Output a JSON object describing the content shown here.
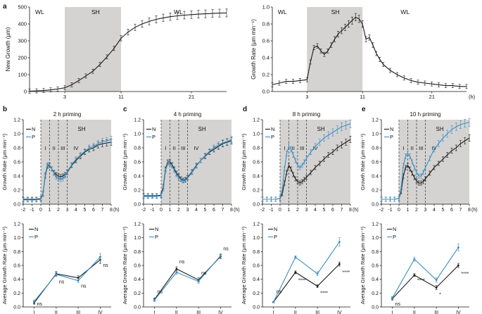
{
  "colors": {
    "black": "#1a1a1a",
    "blue": "#3a8fc6",
    "shade": "#d5d3d1"
  },
  "panel_letters": {
    "a": "a",
    "b": "b",
    "c": "c",
    "d": "d",
    "e": "e"
  },
  "chart_data": [
    {
      "id": "a1",
      "type": "line",
      "xlabel": "",
      "ylabel": "New Growth (μm)",
      "xlim": [
        -2,
        26
      ],
      "ylim": [
        0,
        500
      ],
      "xticks": [
        3,
        11,
        21
      ],
      "yticks": [
        0,
        100,
        200,
        300,
        400,
        500
      ],
      "x_unit_label": "",
      "shade": [
        3,
        11
      ],
      "region_labels": [
        {
          "text": "WL",
          "x": -1.2
        },
        {
          "text": "SH",
          "x": 6.8
        },
        {
          "text": "WL",
          "x": 18.5
        }
      ],
      "x": [
        -2,
        -1,
        0,
        1,
        2,
        3,
        4,
        5,
        6,
        7,
        8,
        9,
        10,
        11,
        12,
        13,
        14,
        15,
        16,
        17,
        18,
        19,
        20,
        21,
        22,
        23,
        24,
        25,
        26
      ],
      "series": [
        {
          "name": "growth",
          "color": "black",
          "values": [
            2,
            4,
            6,
            10,
            15,
            22,
            40,
            65,
            92,
            120,
            160,
            205,
            255,
            315,
            352,
            380,
            400,
            415,
            427,
            436,
            443,
            448,
            452,
            455,
            458,
            460,
            462,
            464,
            465
          ]
        }
      ]
    },
    {
      "id": "a2",
      "type": "line",
      "xlabel": "",
      "ylabel": "Growth Rate (μm min⁻¹)",
      "xlim": [
        -2,
        26
      ],
      "ylim": [
        0,
        1.0
      ],
      "xticks": [
        3,
        11,
        21
      ],
      "yticks": [
        0,
        0.2,
        0.4,
        0.6,
        0.8,
        1.0
      ],
      "x_unit_label": "(h)",
      "shade": [
        3,
        11
      ],
      "region_labels": [
        {
          "text": "WL",
          "x": -1.2
        },
        {
          "text": "SH",
          "x": 6.5
        },
        {
          "text": "WL",
          "x": 16.5
        }
      ],
      "x": [
        -2,
        -1,
        0,
        1,
        2,
        3,
        3.5,
        4,
        4.5,
        5,
        5.5,
        6,
        6.5,
        7,
        7.5,
        8,
        8.5,
        9,
        9.5,
        10,
        10.5,
        11,
        11.5,
        12,
        12.5,
        13,
        13.5,
        14,
        15,
        16,
        17,
        18,
        19,
        20,
        21,
        22,
        23,
        24,
        25,
        26
      ],
      "series": [
        {
          "name": "rate",
          "color": "black",
          "values": [
            0.08,
            0.1,
            0.12,
            0.12,
            0.13,
            0.14,
            0.35,
            0.52,
            0.54,
            0.48,
            0.44,
            0.48,
            0.55,
            0.62,
            0.68,
            0.72,
            0.76,
            0.8,
            0.84,
            0.88,
            0.86,
            0.8,
            0.62,
            0.64,
            0.55,
            0.45,
            0.38,
            0.32,
            0.25,
            0.2,
            0.16,
            0.13,
            0.11,
            0.1,
            0.09,
            0.08,
            0.07,
            0.07,
            0.06,
            0.06
          ]
        }
      ]
    },
    {
      "id": "b1",
      "type": "line",
      "title": "2 h priming",
      "ylabel": "Growth Rate (μm min⁻¹)",
      "xlim": [
        -2,
        8
      ],
      "ylim": [
        0,
        1.2
      ],
      "xticks": [
        -2,
        -1,
        0,
        1,
        2,
        3,
        4,
        5,
        6,
        7,
        8
      ],
      "yticks": [
        0,
        0.2,
        0.4,
        0.6,
        0.8,
        1.0,
        1.2
      ],
      "x_unit_label": "(h)",
      "shade": [
        0,
        8
      ],
      "dashes": [
        0,
        1,
        2,
        3
      ],
      "legend": [
        "N",
        "P"
      ],
      "stage_labels": [
        "I",
        "II",
        "III",
        "IV"
      ],
      "sh_label": "SH",
      "x": [
        -2,
        -1.5,
        -1,
        -0.5,
        0,
        0.25,
        0.5,
        0.75,
        1,
        1.25,
        1.5,
        1.75,
        2,
        2.25,
        2.5,
        2.75,
        3,
        3.5,
        4,
        4.5,
        5,
        5.5,
        6,
        6.5,
        7,
        7.5,
        8
      ],
      "series": [
        {
          "name": "N",
          "color": "black",
          "values": [
            0.07,
            0.07,
            0.07,
            0.07,
            0.08,
            0.15,
            0.4,
            0.54,
            0.55,
            0.5,
            0.45,
            0.42,
            0.4,
            0.39,
            0.4,
            0.42,
            0.45,
            0.55,
            0.62,
            0.68,
            0.74,
            0.78,
            0.8,
            0.84,
            0.86,
            0.87,
            0.88
          ]
        },
        {
          "name": "P",
          "color": "blue",
          "values": [
            0.06,
            0.06,
            0.06,
            0.06,
            0.07,
            0.14,
            0.42,
            0.56,
            0.56,
            0.5,
            0.44,
            0.38,
            0.36,
            0.35,
            0.36,
            0.4,
            0.46,
            0.56,
            0.64,
            0.7,
            0.75,
            0.8,
            0.82,
            0.86,
            0.89,
            0.9,
            0.92
          ]
        }
      ]
    },
    {
      "id": "c1",
      "type": "line",
      "title": "4 h priming",
      "ylabel": "Growth Rate (μm min⁻¹)",
      "xlim": [
        -2,
        8
      ],
      "ylim": [
        0,
        1.2
      ],
      "xticks": [
        -2,
        -1,
        0,
        1,
        2,
        3,
        4,
        5,
        6,
        7,
        8
      ],
      "yticks": [
        0,
        0.2,
        0.4,
        0.6,
        0.8,
        1.0,
        1.2
      ],
      "x_unit_label": "(h)",
      "shade": [
        0,
        8
      ],
      "dashes": [
        0,
        1,
        2,
        3
      ],
      "legend": [
        "N",
        "P"
      ],
      "stage_labels": [
        "I",
        "II",
        "III",
        "IV"
      ],
      "sh_label": "SH",
      "x": [
        -2,
        -1.5,
        -1,
        -0.5,
        0,
        0.25,
        0.5,
        0.75,
        1,
        1.25,
        1.5,
        1.75,
        2,
        2.25,
        2.5,
        2.75,
        3,
        3.5,
        4,
        4.5,
        5,
        5.5,
        6,
        6.5,
        7,
        7.5,
        8
      ],
      "series": [
        {
          "name": "N",
          "color": "black",
          "values": [
            0.12,
            0.12,
            0.12,
            0.12,
            0.13,
            0.25,
            0.5,
            0.6,
            0.6,
            0.56,
            0.5,
            0.44,
            0.4,
            0.36,
            0.34,
            0.35,
            0.38,
            0.46,
            0.55,
            0.62,
            0.68,
            0.74,
            0.78,
            0.82,
            0.86,
            0.88,
            0.9
          ]
        },
        {
          "name": "P",
          "color": "blue",
          "values": [
            0.11,
            0.11,
            0.11,
            0.11,
            0.12,
            0.22,
            0.48,
            0.58,
            0.58,
            0.54,
            0.48,
            0.42,
            0.38,
            0.35,
            0.33,
            0.34,
            0.37,
            0.45,
            0.54,
            0.62,
            0.69,
            0.75,
            0.8,
            0.84,
            0.87,
            0.89,
            0.92
          ]
        }
      ]
    },
    {
      "id": "d1",
      "type": "line",
      "title": "8 h priming",
      "ylabel": "Growth Rate (μm min⁻¹)",
      "xlim": [
        -2,
        8
      ],
      "ylim": [
        0,
        1.2
      ],
      "xticks": [
        -2,
        -1,
        0,
        1,
        2,
        3,
        4,
        5,
        6,
        7,
        8
      ],
      "yticks": [
        0,
        0.2,
        0.4,
        0.6,
        0.8,
        1.0,
        1.2
      ],
      "x_unit_label": "(h)",
      "shade": [
        0,
        8
      ],
      "dashes": [
        0,
        1,
        2,
        3
      ],
      "legend": [
        "N",
        "P"
      ],
      "stage_labels": [
        "I",
        "II",
        "III",
        "IV"
      ],
      "sh_label": "SH",
      "x": [
        -2,
        -1.5,
        -1,
        -0.5,
        0,
        0.25,
        0.5,
        0.75,
        1,
        1.25,
        1.5,
        1.75,
        2,
        2.25,
        2.5,
        2.75,
        3,
        3.5,
        4,
        4.5,
        5,
        5.5,
        6,
        6.5,
        7,
        7.5,
        8
      ],
      "series": [
        {
          "name": "N",
          "color": "black",
          "values": [
            0.07,
            0.07,
            0.07,
            0.07,
            0.08,
            0.15,
            0.3,
            0.45,
            0.55,
            0.5,
            0.42,
            0.36,
            0.32,
            0.3,
            0.32,
            0.35,
            0.38,
            0.45,
            0.52,
            0.58,
            0.64,
            0.7,
            0.74,
            0.8,
            0.84,
            0.88,
            0.92
          ]
        },
        {
          "name": "P",
          "color": "blue",
          "values": [
            0.07,
            0.07,
            0.07,
            0.07,
            0.08,
            0.2,
            0.5,
            0.72,
            0.82,
            0.78,
            0.7,
            0.62,
            0.55,
            0.52,
            0.55,
            0.6,
            0.65,
            0.74,
            0.82,
            0.88,
            0.94,
            0.98,
            1.02,
            1.06,
            1.1,
            1.12,
            1.14
          ]
        }
      ]
    },
    {
      "id": "e1",
      "type": "line",
      "title": "10 h priming",
      "ylabel": "Growth Rate (μm min⁻¹)",
      "xlim": [
        -2,
        8
      ],
      "ylim": [
        0,
        1.2
      ],
      "xticks": [
        -2,
        -1,
        0,
        1,
        2,
        3,
        4,
        5,
        6,
        7,
        8
      ],
      "yticks": [
        0,
        0.2,
        0.4,
        0.6,
        0.8,
        1.0,
        1.2
      ],
      "x_unit_label": "(h)",
      "shade": [
        0,
        8
      ],
      "dashes": [
        0,
        1,
        2,
        3
      ],
      "legend": [
        "N",
        "P"
      ],
      "stage_labels": [
        "I",
        "II",
        "III",
        "IV"
      ],
      "sh_label": "SH",
      "x": [
        -2,
        -1.5,
        -1,
        -0.5,
        0,
        0.25,
        0.5,
        0.75,
        1,
        1.25,
        1.5,
        1.75,
        2,
        2.25,
        2.5,
        2.75,
        3,
        3.5,
        4,
        4.5,
        5,
        5.5,
        6,
        6.5,
        7,
        7.5,
        8
      ],
      "series": [
        {
          "name": "N",
          "color": "black",
          "values": [
            0.07,
            0.07,
            0.07,
            0.07,
            0.08,
            0.18,
            0.4,
            0.52,
            0.55,
            0.5,
            0.44,
            0.38,
            0.33,
            0.3,
            0.3,
            0.32,
            0.36,
            0.44,
            0.52,
            0.58,
            0.64,
            0.7,
            0.76,
            0.8,
            0.86,
            0.9,
            0.94
          ]
        },
        {
          "name": "P",
          "color": "blue",
          "values": [
            0.07,
            0.07,
            0.07,
            0.07,
            0.08,
            0.22,
            0.55,
            0.68,
            0.72,
            0.68,
            0.6,
            0.52,
            0.45,
            0.4,
            0.4,
            0.45,
            0.52,
            0.65,
            0.78,
            0.86,
            0.94,
            1.0,
            1.06,
            1.1,
            1.13,
            1.15,
            1.16
          ]
        }
      ]
    },
    {
      "id": "b2",
      "type": "line",
      "ylabel": "Average Growth Rate (μm min⁻¹)",
      "ylim": [
        0,
        1.2
      ],
      "yticks": [
        0,
        0.2,
        0.4,
        0.6,
        0.8,
        1.0,
        1.2
      ],
      "categories": [
        "I",
        "II",
        "III",
        "IV"
      ],
      "legend": [
        "N",
        "P"
      ],
      "series": [
        {
          "name": "N",
          "color": "black",
          "values": [
            0.06,
            0.48,
            0.42,
            0.68
          ],
          "err": [
            0.02,
            0.03,
            0.03,
            0.05
          ]
        },
        {
          "name": "P",
          "color": "blue",
          "values": [
            0.08,
            0.47,
            0.38,
            0.72
          ],
          "err": [
            0.02,
            0.03,
            0.03,
            0.05
          ]
        }
      ],
      "annotations": [
        {
          "text": "ns",
          "cat": 0,
          "y": 0.02,
          "dx": 0
        },
        {
          "text": "ns",
          "cat": 1,
          "y": 0.34,
          "dx": 0
        },
        {
          "text": "ns",
          "cat": 2,
          "y": 0.28,
          "dx": 0
        },
        {
          "text": "ns",
          "cat": 3,
          "y": 0.58,
          "dx": 0
        }
      ]
    },
    {
      "id": "c2",
      "type": "line",
      "ylabel": "Average Growth Rate (μm min⁻¹)",
      "ylim": [
        0,
        1.2
      ],
      "yticks": [
        0,
        0.2,
        0.4,
        0.6,
        0.8,
        1.0,
        1.2
      ],
      "categories": [
        "I",
        "II",
        "III",
        "IV"
      ],
      "legend": [
        "N",
        "P"
      ],
      "series": [
        {
          "name": "N",
          "color": "black",
          "values": [
            0.11,
            0.55,
            0.39,
            0.73
          ],
          "err": [
            0.02,
            0.03,
            0.03,
            0.03
          ]
        },
        {
          "name": "P",
          "color": "blue",
          "values": [
            0.1,
            0.5,
            0.37,
            0.74
          ],
          "err": [
            0.02,
            0.03,
            0.03,
            0.03
          ]
        }
      ],
      "annotations": [
        {
          "text": "ns",
          "cat": 0,
          "y": 0.2,
          "dx": 0
        },
        {
          "text": "ns",
          "cat": 1,
          "y": 0.63,
          "dx": 0
        },
        {
          "text": "ns",
          "cat": 2,
          "y": 0.47,
          "dx": 0
        },
        {
          "text": "ns",
          "cat": 3,
          "y": 0.82,
          "dx": 0
        }
      ]
    },
    {
      "id": "d2",
      "type": "line",
      "ylabel": "Average Growth Rate (μm min⁻¹)",
      "ylim": [
        0,
        1.2
      ],
      "yticks": [
        0,
        0.2,
        0.4,
        0.6,
        0.8,
        1.0,
        1.2
      ],
      "categories": [
        "I",
        "II",
        "III",
        "IV"
      ],
      "legend": [
        "N",
        "P"
      ],
      "series": [
        {
          "name": "N",
          "color": "black",
          "values": [
            0.07,
            0.5,
            0.3,
            0.62
          ],
          "err": [
            0.01,
            0.02,
            0.02,
            0.03
          ]
        },
        {
          "name": "P",
          "color": "blue",
          "values": [
            0.07,
            0.72,
            0.48,
            0.94
          ],
          "err": [
            0.01,
            0.02,
            0.03,
            0.06
          ]
        }
      ],
      "annotations": [
        {
          "text": "ns",
          "cat": 0,
          "y": 0.2,
          "dx": 0
        },
        {
          "text": "****",
          "cat": 1,
          "y": 0.36,
          "dx": 0
        },
        {
          "text": "****",
          "cat": 2,
          "y": 0.18,
          "dx": 0
        },
        {
          "text": "****",
          "cat": 3,
          "y": 0.48,
          "dx": 0
        }
      ]
    },
    {
      "id": "e2",
      "type": "line",
      "ylabel": "Average Growth Rate (μm min⁻¹)",
      "ylim": [
        0,
        1.2
      ],
      "yticks": [
        0,
        0.2,
        0.4,
        0.6,
        0.8,
        1.0,
        1.2
      ],
      "categories": [
        "I",
        "II",
        "III",
        "IV"
      ],
      "legend": [
        "N",
        "P"
      ],
      "series": [
        {
          "name": "N",
          "color": "black",
          "values": [
            0.12,
            0.46,
            0.28,
            0.6
          ],
          "err": [
            0.02,
            0.02,
            0.03,
            0.03
          ]
        },
        {
          "name": "P",
          "color": "blue",
          "values": [
            0.13,
            0.69,
            0.39,
            0.86
          ],
          "err": [
            0.02,
            0.03,
            0.03,
            0.05
          ]
        }
      ],
      "annotations": [
        {
          "text": "ns",
          "cat": 0,
          "y": 0.02,
          "dx": 0
        },
        {
          "text": "****",
          "cat": 1,
          "y": 0.36,
          "dx": 0
        },
        {
          "text": "*",
          "cat": 2,
          "y": 0.16,
          "dx": 0
        },
        {
          "text": "****",
          "cat": 3,
          "y": 0.46,
          "dx": 0
        }
      ]
    }
  ]
}
